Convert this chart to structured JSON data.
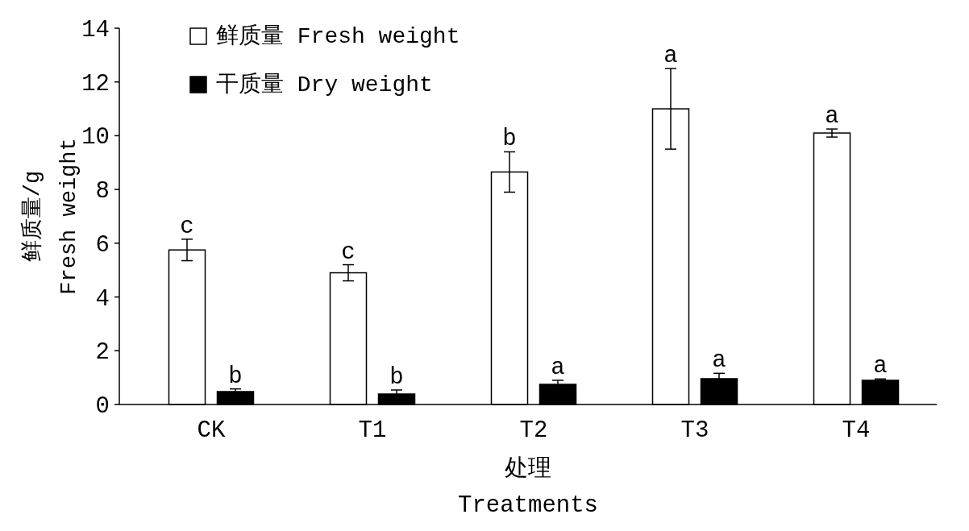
{
  "chart_data": {
    "type": "bar",
    "xlabel": "处理\nTreatments",
    "ylabel": "鲜质量/g\nFresh weight",
    "categories": [
      "CK",
      "T1",
      "T2",
      "T3",
      "T4"
    ],
    "series": [
      {
        "name": "鲜质量 Fresh weight",
        "color": "#ffffff",
        "values": [
          5.75,
          4.9,
          8.65,
          11.0,
          10.1
        ],
        "errors": [
          0.4,
          0.3,
          0.75,
          1.5,
          0.15
        ],
        "value_labels": [
          "c",
          "c",
          "b",
          "a",
          "a"
        ]
      },
      {
        "name": "干质量 Dry weight",
        "color": "#000000",
        "values": [
          0.48,
          0.39,
          0.75,
          0.96,
          0.9
        ],
        "errors": [
          0.1,
          0.15,
          0.15,
          0.2,
          0.05
        ],
        "value_labels": [
          "b",
          "b",
          "a",
          "a",
          "a"
        ]
      }
    ],
    "ylim": [
      0,
      14
    ],
    "yticks": [
      0,
      2,
      4,
      6,
      8,
      10,
      12,
      14
    ],
    "legend": "top left",
    "grid": false
  }
}
